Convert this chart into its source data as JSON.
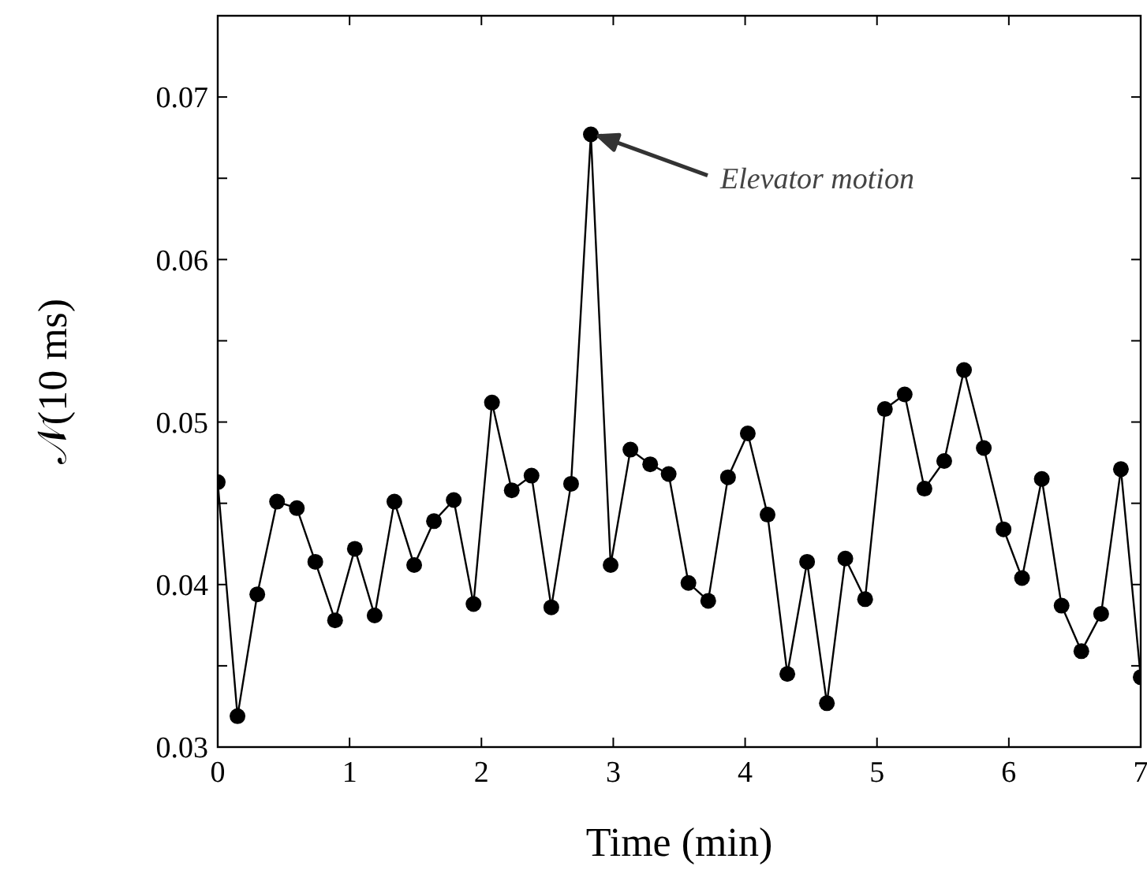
{
  "chart_data": {
    "type": "line",
    "xlabel": "Time (min)",
    "ylabel": "𝒩(10 ms)",
    "x": [
      0,
      0.15,
      0.3,
      0.45,
      0.6,
      0.74,
      0.89,
      1.04,
      1.19,
      1.34,
      1.49,
      1.64,
      1.79,
      1.94,
      2.08,
      2.23,
      2.38,
      2.53,
      2.68,
      2.83,
      2.98,
      3.13,
      3.28,
      3.42,
      3.57,
      3.72,
      3.87,
      4.02,
      4.17,
      4.32,
      4.47,
      4.62,
      4.76,
      4.91,
      5.06,
      5.21,
      5.36,
      5.51,
      5.66,
      5.81,
      5.96,
      6.1,
      6.25,
      6.4,
      6.55,
      6.7,
      6.85,
      7.0
    ],
    "series": [
      {
        "color": "#000000",
        "values": [
          0.0463,
          0.0319,
          0.0394,
          0.0451,
          0.0447,
          0.0414,
          0.0378,
          0.0422,
          0.0381,
          0.0451,
          0.0412,
          0.0439,
          0.0452,
          0.0388,
          0.0512,
          0.0458,
          0.0467,
          0.0386,
          0.0462,
          0.0677,
          0.0412,
          0.0483,
          0.0474,
          0.0468,
          0.0401,
          0.039,
          0.0466,
          0.0493,
          0.0443,
          0.0345,
          0.0414,
          0.0327,
          0.0416,
          0.0391,
          0.0508,
          0.0517,
          0.0459,
          0.0476,
          0.0532,
          0.0484,
          0.0434,
          0.0404,
          0.0465,
          0.0387,
          0.0359,
          0.0382,
          0.0471,
          0.0343
        ]
      }
    ],
    "xlim": [
      0,
      7
    ],
    "xticks": [
      0,
      1,
      2,
      3,
      4,
      5,
      6,
      7
    ],
    "ylim": [
      0.03,
      0.075
    ],
    "yticks": [
      0.03,
      {
        "value": 0.035,
        "label": null
      },
      0.04,
      {
        "value": 0.045,
        "label": null
      },
      0.05,
      {
        "value": 0.055,
        "label": null
      },
      0.06,
      {
        "value": 0.065,
        "label": null
      },
      0.07
    ],
    "marker": "circle",
    "line_style": "solid",
    "annotations": [
      "Elevator motion"
    ]
  }
}
